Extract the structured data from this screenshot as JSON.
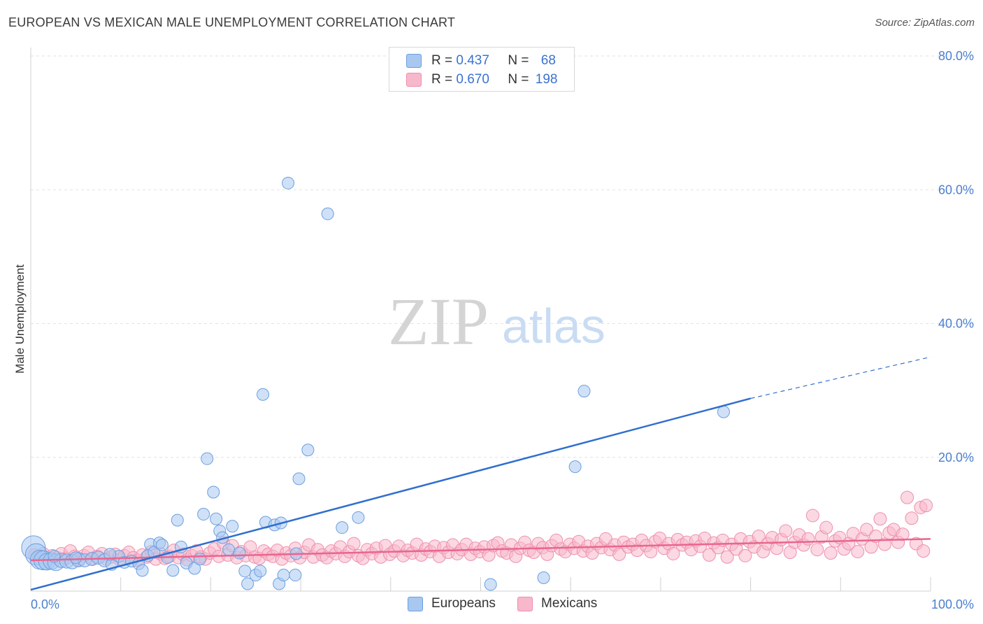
{
  "title": "EUROPEAN VS MEXICAN MALE UNEMPLOYMENT CORRELATION CHART",
  "source": "Source: ZipAtlas.com",
  "watermark": {
    "zip": "ZIP",
    "atlas": "atlas"
  },
  "legend": {
    "r_label": "R = ",
    "n_label": "N = ",
    "rows": [
      {
        "r": "0.437",
        "n": "68"
      },
      {
        "r": "0.670",
        "n": "198"
      }
    ]
  },
  "colors": {
    "europeans_fill": "#a9c8f0",
    "europeans_stroke": "#6b9fe0",
    "europeans_line": "#2f6fce",
    "mexicans_fill": "#f7b8cb",
    "mexicans_stroke": "#ee8fae",
    "mexicans_line": "#e8668f",
    "tick_text": "#4a7fd0",
    "grid": "#e2e2e2"
  },
  "chart_data": {
    "type": "scatter",
    "title": "EUROPEAN VS MEXICAN MALE UNEMPLOYMENT CORRELATION CHART",
    "xlabel": "",
    "ylabel": "Male Unemployment",
    "xlim": [
      0,
      100
    ],
    "ylim": [
      0,
      80
    ],
    "x_tick_labels": [
      "0.0%",
      "100.0%"
    ],
    "y_ticks": [
      20,
      40,
      60,
      80
    ],
    "y_tick_labels": [
      "20.0%",
      "40.0%",
      "60.0%",
      "80.0%"
    ],
    "grid": true,
    "legend_placement": "top-center",
    "series": [
      {
        "name": "Europeans",
        "r": 0.437,
        "n": 68,
        "trend": {
          "x": [
            0,
            80
          ],
          "y": [
            0.2,
            28.8
          ],
          "dashed_to": [
            100,
            35.0
          ]
        },
        "points": [
          [
            0.3,
            6.5
          ],
          [
            0.6,
            5.5
          ],
          [
            1.0,
            4.7
          ],
          [
            1.4,
            4.6
          ],
          [
            1.8,
            4.4
          ],
          [
            2.3,
            4.5
          ],
          [
            2.8,
            4.3
          ],
          [
            3.4,
            4.6
          ],
          [
            4.0,
            4.5
          ],
          [
            4.6,
            4.4
          ],
          [
            5.3,
            4.7
          ],
          [
            6.0,
            4.6
          ],
          [
            6.8,
            4.8
          ],
          [
            7.5,
            5.0
          ],
          [
            8.2,
            4.6
          ],
          [
            9.0,
            4.0
          ],
          [
            9.8,
            5.2
          ],
          [
            10.4,
            4.3
          ],
          [
            11.2,
            4.5
          ],
          [
            12.0,
            4.1
          ],
          [
            12.4,
            3.1
          ],
          [
            13.0,
            5.3
          ],
          [
            13.3,
            7.0
          ],
          [
            13.7,
            5.8
          ],
          [
            14.3,
            7.2
          ],
          [
            14.6,
            6.9
          ],
          [
            15.2,
            5.0
          ],
          [
            15.8,
            3.1
          ],
          [
            16.3,
            10.6
          ],
          [
            16.7,
            6.6
          ],
          [
            17.3,
            4.2
          ],
          [
            18.2,
            3.4
          ],
          [
            18.8,
            4.8
          ],
          [
            19.2,
            11.5
          ],
          [
            19.6,
            19.8
          ],
          [
            20.3,
            14.8
          ],
          [
            20.6,
            10.8
          ],
          [
            21.0,
            9.0
          ],
          [
            21.3,
            8.0
          ],
          [
            22.0,
            6.2
          ],
          [
            22.4,
            9.7
          ],
          [
            23.2,
            5.7
          ],
          [
            23.8,
            3.0
          ],
          [
            24.1,
            1.1
          ],
          [
            25.0,
            2.4
          ],
          [
            25.5,
            3.0
          ],
          [
            25.8,
            29.4
          ],
          [
            26.1,
            10.3
          ],
          [
            27.1,
            9.9
          ],
          [
            27.8,
            10.2
          ],
          [
            27.6,
            1.1
          ],
          [
            28.1,
            2.4
          ],
          [
            28.6,
            61.0
          ],
          [
            29.4,
            2.4
          ],
          [
            29.5,
            5.6
          ],
          [
            29.8,
            16.8
          ],
          [
            30.8,
            21.1
          ],
          [
            33.0,
            56.4
          ],
          [
            34.6,
            9.5
          ],
          [
            36.4,
            11.0
          ],
          [
            51.1,
            1.0
          ],
          [
            57.0,
            2.0
          ],
          [
            60.5,
            18.6
          ],
          [
            61.5,
            29.9
          ],
          [
            77.0,
            26.8
          ],
          [
            2.6,
            5.2
          ],
          [
            5.0,
            5.0
          ],
          [
            8.8,
            5.5
          ]
        ],
        "sizes": [
          20,
          18,
          16,
          16,
          14,
          14,
          14,
          12,
          12,
          12,
          12,
          11,
          11,
          11,
          11,
          10,
          10,
          10,
          10,
          10,
          10,
          10,
          10,
          10,
          10,
          10,
          10,
          10,
          10,
          10,
          10,
          10,
          10,
          10,
          10,
          10,
          10,
          10,
          10,
          10,
          10,
          10,
          10,
          10,
          10,
          10,
          10,
          10,
          10,
          10,
          10,
          10,
          10,
          10,
          10,
          10,
          10,
          10,
          10,
          10,
          10,
          10,
          10,
          10,
          10,
          10,
          10,
          10
        ]
      },
      {
        "name": "Mexicans",
        "r": 0.67,
        "n": 198,
        "trend": {
          "x": [
            0,
            100
          ],
          "y": [
            4.6,
            7.8
          ]
        },
        "points": [
          [
            0.4,
            5.4
          ],
          [
            0.9,
            5.0
          ],
          [
            1.4,
            5.6
          ],
          [
            1.9,
            4.8
          ],
          [
            2.4,
            5.3
          ],
          [
            2.9,
            5.0
          ],
          [
            3.4,
            5.6
          ],
          [
            3.9,
            4.9
          ],
          [
            4.4,
            6.0
          ],
          [
            4.9,
            5.2
          ],
          [
            5.4,
            4.7
          ],
          [
            5.9,
            5.3
          ],
          [
            6.4,
            5.8
          ],
          [
            6.9,
            4.9
          ],
          [
            7.4,
            5.2
          ],
          [
            7.9,
            5.6
          ],
          [
            8.4,
            4.8
          ],
          [
            8.9,
            5.1
          ],
          [
            9.4,
            5.5
          ],
          [
            9.9,
            4.7
          ],
          [
            10.4,
            5.3
          ],
          [
            10.9,
            5.8
          ],
          [
            11.4,
            5.0
          ],
          [
            11.9,
            4.6
          ],
          [
            12.4,
            5.4
          ],
          [
            12.9,
            5.1
          ],
          [
            13.4,
            5.9
          ],
          [
            13.9,
            4.8
          ],
          [
            14.4,
            5.6
          ],
          [
            14.9,
            4.9
          ],
          [
            15.4,
            5.2
          ],
          [
            15.9,
            6.1
          ],
          [
            16.4,
            5.0
          ],
          [
            16.9,
            5.5
          ],
          [
            17.4,
            4.7
          ],
          [
            17.9,
            5.3
          ],
          [
            18.4,
            6.0
          ],
          [
            18.9,
            5.1
          ],
          [
            19.4,
            4.8
          ],
          [
            19.9,
            5.7
          ],
          [
            20.4,
            6.3
          ],
          [
            20.9,
            5.2
          ],
          [
            21.4,
            7.2
          ],
          [
            21.9,
            5.4
          ],
          [
            22.4,
            6.8
          ],
          [
            22.9,
            5.0
          ],
          [
            23.4,
            5.9
          ],
          [
            23.9,
            5.3
          ],
          [
            24.4,
            6.6
          ],
          [
            24.9,
            5.1
          ],
          [
            25.4,
            4.9
          ],
          [
            25.9,
            6.0
          ],
          [
            26.4,
            5.5
          ],
          [
            26.9,
            5.2
          ],
          [
            27.4,
            6.1
          ],
          [
            27.9,
            4.8
          ],
          [
            28.4,
            5.7
          ],
          [
            28.9,
            5.3
          ],
          [
            29.4,
            6.4
          ],
          [
            29.9,
            5.0
          ],
          [
            30.4,
            5.8
          ],
          [
            30.9,
            6.9
          ],
          [
            31.4,
            5.1
          ],
          [
            31.9,
            6.2
          ],
          [
            32.4,
            5.4
          ],
          [
            32.9,
            5.0
          ],
          [
            33.4,
            6.0
          ],
          [
            33.9,
            5.6
          ],
          [
            34.4,
            6.6
          ],
          [
            34.9,
            5.2
          ],
          [
            35.4,
            5.9
          ],
          [
            35.9,
            7.1
          ],
          [
            36.4,
            5.3
          ],
          [
            36.9,
            4.9
          ],
          [
            37.4,
            6.2
          ],
          [
            37.9,
            5.6
          ],
          [
            38.4,
            6.4
          ],
          [
            38.9,
            5.1
          ],
          [
            39.4,
            6.8
          ],
          [
            39.9,
            5.5
          ],
          [
            40.4,
            6.0
          ],
          [
            40.9,
            6.7
          ],
          [
            41.4,
            5.3
          ],
          [
            41.9,
            6.1
          ],
          [
            42.4,
            5.7
          ],
          [
            42.9,
            7.0
          ],
          [
            43.4,
            5.4
          ],
          [
            43.9,
            6.3
          ],
          [
            44.4,
            5.9
          ],
          [
            44.9,
            6.7
          ],
          [
            45.4,
            5.2
          ],
          [
            45.9,
            6.5
          ],
          [
            46.4,
            5.8
          ],
          [
            46.9,
            6.9
          ],
          [
            47.4,
            5.6
          ],
          [
            47.9,
            6.2
          ],
          [
            48.4,
            7.0
          ],
          [
            48.9,
            5.5
          ],
          [
            49.4,
            6.4
          ],
          [
            49.9,
            5.9
          ],
          [
            50.4,
            6.6
          ],
          [
            50.9,
            5.4
          ],
          [
            51.4,
            6.8
          ],
          [
            51.9,
            7.2
          ],
          [
            52.4,
            6.0
          ],
          [
            52.9,
            5.7
          ],
          [
            53.4,
            6.9
          ],
          [
            53.9,
            5.2
          ],
          [
            54.4,
            6.4
          ],
          [
            54.9,
            7.3
          ],
          [
            55.4,
            6.1
          ],
          [
            55.9,
            5.8
          ],
          [
            56.4,
            7.1
          ],
          [
            56.9,
            6.5
          ],
          [
            57.4,
            5.5
          ],
          [
            57.9,
            6.8
          ],
          [
            58.4,
            7.6
          ],
          [
            58.9,
            6.3
          ],
          [
            59.4,
            5.9
          ],
          [
            59.9,
            7.0
          ],
          [
            60.4,
            6.4
          ],
          [
            60.9,
            7.4
          ],
          [
            61.4,
            6.0
          ],
          [
            61.9,
            6.7
          ],
          [
            62.4,
            5.7
          ],
          [
            62.9,
            7.1
          ],
          [
            63.4,
            6.5
          ],
          [
            63.9,
            7.8
          ],
          [
            64.4,
            6.2
          ],
          [
            64.9,
            6.9
          ],
          [
            65.4,
            5.5
          ],
          [
            65.9,
            7.3
          ],
          [
            66.4,
            6.6
          ],
          [
            66.9,
            7.0
          ],
          [
            67.4,
            6.1
          ],
          [
            67.9,
            7.6
          ],
          [
            68.4,
            6.8
          ],
          [
            68.9,
            5.9
          ],
          [
            69.4,
            7.4
          ],
          [
            69.9,
            7.9
          ],
          [
            70.4,
            6.4
          ],
          [
            70.9,
            7.1
          ],
          [
            71.4,
            5.6
          ],
          [
            71.9,
            7.7
          ],
          [
            72.4,
            6.9
          ],
          [
            72.9,
            7.3
          ],
          [
            73.4,
            6.2
          ],
          [
            73.9,
            7.5
          ],
          [
            74.4,
            6.7
          ],
          [
            74.9,
            7.9
          ],
          [
            75.4,
            5.4
          ],
          [
            75.9,
            7.2
          ],
          [
            76.4,
            6.5
          ],
          [
            76.9,
            7.6
          ],
          [
            77.4,
            5.1
          ],
          [
            77.9,
            7.0
          ],
          [
            78.4,
            6.3
          ],
          [
            78.9,
            7.8
          ],
          [
            79.4,
            5.3
          ],
          [
            79.9,
            7.4
          ],
          [
            80.4,
            6.6
          ],
          [
            80.9,
            8.2
          ],
          [
            81.4,
            5.9
          ],
          [
            81.9,
            7.1
          ],
          [
            82.4,
            8.0
          ],
          [
            82.9,
            6.4
          ],
          [
            83.4,
            7.7
          ],
          [
            83.9,
            9.0
          ],
          [
            84.4,
            5.8
          ],
          [
            84.9,
            7.3
          ],
          [
            85.4,
            8.4
          ],
          [
            85.9,
            6.9
          ],
          [
            86.4,
            7.8
          ],
          [
            86.9,
            11.3
          ],
          [
            87.4,
            6.2
          ],
          [
            87.9,
            8.1
          ],
          [
            88.4,
            9.5
          ],
          [
            88.9,
            5.7
          ],
          [
            89.4,
            7.5
          ],
          [
            89.9,
            8.0
          ],
          [
            90.4,
            6.3
          ],
          [
            90.9,
            7.1
          ],
          [
            91.4,
            8.6
          ],
          [
            91.9,
            5.9
          ],
          [
            92.4,
            7.8
          ],
          [
            92.9,
            9.2
          ],
          [
            93.4,
            6.6
          ],
          [
            93.9,
            8.2
          ],
          [
            94.4,
            10.8
          ],
          [
            94.9,
            7.0
          ],
          [
            95.4,
            8.7
          ],
          [
            95.9,
            9.2
          ],
          [
            96.4,
            7.3
          ],
          [
            96.9,
            8.5
          ],
          [
            97.4,
            14.0
          ],
          [
            97.9,
            10.9
          ],
          [
            98.4,
            7.1
          ],
          [
            98.9,
            12.5
          ],
          [
            99.2,
            6.0
          ],
          [
            99.5,
            12.8
          ]
        ]
      }
    ]
  }
}
